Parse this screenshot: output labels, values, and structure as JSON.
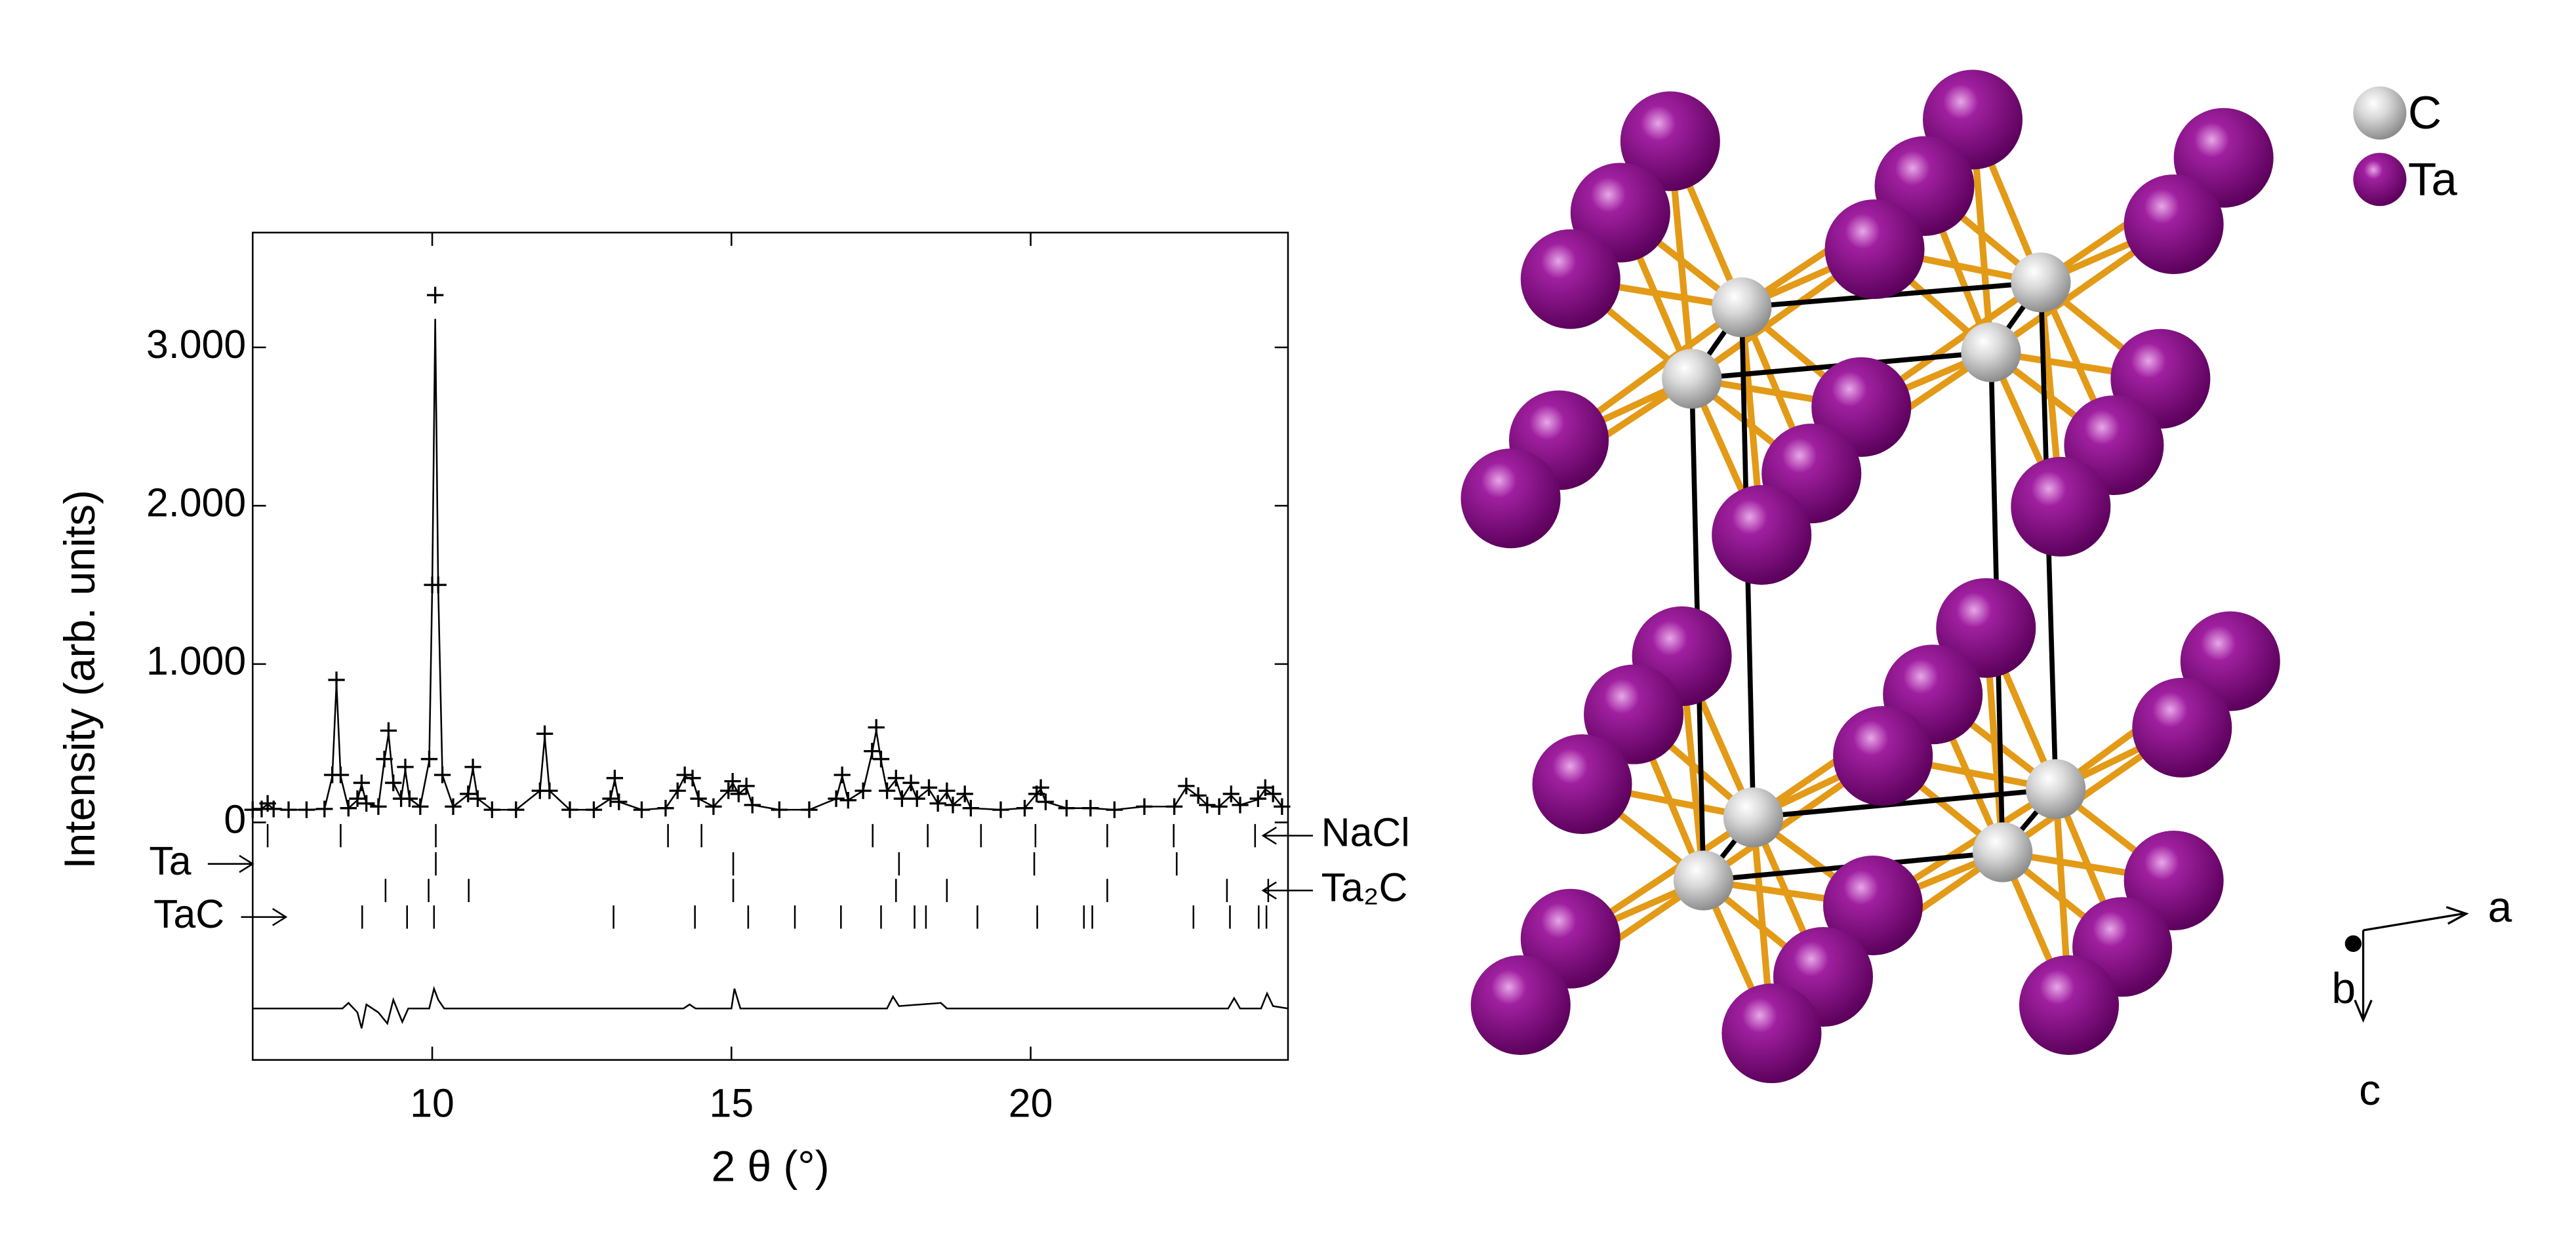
{
  "chart_data": {
    "type": "rietveld",
    "ylabel": "Intensity (arb. units)",
    "xlabel": "2 θ (°)",
    "xlim": [
      7,
      24.3
    ],
    "xticks": [
      10,
      15,
      20
    ],
    "ylim": [
      -1500,
      3725
    ],
    "yticks": [
      {
        "value": 0,
        "label": "0"
      },
      {
        "value": 1000,
        "label": "1.000"
      },
      {
        "value": 2000,
        "label": "2.000"
      },
      {
        "value": 3000,
        "label": "3.000"
      }
    ],
    "x": [
      7.0,
      7.15,
      7.25,
      7.35,
      7.6,
      7.9,
      8.2,
      8.33,
      8.4,
      8.47,
      8.6,
      8.75,
      8.82,
      8.9,
      9.1,
      9.2,
      9.27,
      9.35,
      9.48,
      9.55,
      9.62,
      9.8,
      9.95,
      10.0,
      10.05,
      10.1,
      10.17,
      10.35,
      10.6,
      10.68,
      10.76,
      11.0,
      11.4,
      11.8,
      11.88,
      11.96,
      12.3,
      12.7,
      12.98,
      13.05,
      13.12,
      13.5,
      13.9,
      14.1,
      14.22,
      14.35,
      14.45,
      14.7,
      14.95,
      15.02,
      15.12,
      15.25,
      15.35,
      15.8,
      16.3,
      16.75,
      16.85,
      16.95,
      17.2,
      17.35,
      17.42,
      17.5,
      17.6,
      17.75,
      17.85,
      18.0,
      18.1,
      18.3,
      18.45,
      18.6,
      18.7,
      18.9,
      19.0,
      19.5,
      19.9,
      20.1,
      20.17,
      20.25,
      20.6,
      21.0,
      21.4,
      21.9,
      22.4,
      22.6,
      22.8,
      22.95,
      23.15,
      23.35,
      23.5,
      23.8,
      23.92,
      24.05,
      24.2
    ],
    "observed": [
      80,
      85,
      120,
      85,
      80,
      80,
      85,
      300,
      900,
      300,
      90,
      150,
      250,
      120,
      100,
      400,
      580,
      250,
      150,
      350,
      150,
      100,
      400,
      1500,
      3330,
      1500,
      300,
      100,
      180,
      350,
      150,
      80,
      80,
      200,
      560,
      200,
      80,
      80,
      150,
      280,
      130,
      80,
      90,
      200,
      300,
      280,
      150,
      100,
      200,
      260,
      180,
      230,
      110,
      80,
      80,
      150,
      300,
      140,
      200,
      450,
      600,
      400,
      200,
      280,
      150,
      250,
      150,
      220,
      120,
      200,
      110,
      180,
      90,
      80,
      90,
      180,
      220,
      130,
      90,
      90,
      80,
      100,
      100,
      230,
      170,
      110,
      100,
      180,
      110,
      150,
      220,
      180,
      100
    ],
    "calculated": [
      80,
      85,
      115,
      85,
      80,
      80,
      85,
      290,
      880,
      290,
      90,
      140,
      240,
      120,
      100,
      390,
      560,
      250,
      150,
      330,
      150,
      100,
      390,
      1480,
      3180,
      1480,
      300,
      100,
      175,
      340,
      150,
      80,
      80,
      200,
      540,
      200,
      80,
      80,
      150,
      270,
      130,
      80,
      90,
      200,
      290,
      270,
      150,
      100,
      200,
      250,
      180,
      220,
      110,
      80,
      80,
      150,
      290,
      140,
      200,
      440,
      580,
      390,
      200,
      270,
      150,
      240,
      150,
      210,
      120,
      190,
      110,
      175,
      90,
      80,
      90,
      180,
      210,
      130,
      90,
      90,
      80,
      100,
      100,
      220,
      165,
      110,
      100,
      170,
      110,
      145,
      210,
      175,
      100
    ],
    "difference": {
      "x": [
        7.0,
        8.5,
        8.6,
        8.75,
        8.82,
        8.9,
        9.1,
        9.25,
        9.35,
        9.5,
        9.6,
        9.95,
        10.03,
        10.1,
        10.2,
        14.2,
        14.3,
        14.4,
        15.0,
        15.05,
        15.15,
        17.6,
        17.7,
        17.8,
        18.5,
        18.6,
        23.3,
        23.4,
        23.5,
        23.85,
        23.95,
        24.05,
        24.3
      ],
      "values": [
        -1175,
        -1175,
        -1140,
        -1200,
        -1300,
        -1150,
        -1200,
        -1270,
        -1120,
        -1260,
        -1175,
        -1175,
        -1050,
        -1120,
        -1175,
        -1175,
        -1150,
        -1175,
        -1175,
        -1050,
        -1175,
        -1175,
        -1100,
        -1160,
        -1140,
        -1175,
        -1175,
        -1110,
        -1175,
        -1175,
        -1080,
        -1160,
        -1175
      ]
    },
    "phases": [
      {
        "name": "NaCl",
        "reflections": [
          7.25,
          8.47,
          10.06,
          13.94,
          14.5,
          17.36,
          18.28,
          19.17,
          20.08,
          21.28,
          22.39,
          23.75
        ]
      },
      {
        "name": "Ta",
        "reflections": [
          10.06,
          15.03,
          17.8,
          20.06,
          22.44
        ]
      },
      {
        "name": "Ta₂C",
        "reflections": [
          9.22,
          9.94,
          10.61,
          15.03,
          17.75,
          18.6,
          21.28,
          23.28,
          23.97
        ]
      },
      {
        "name": "TaC",
        "reflections": [
          8.83,
          9.58,
          10.03,
          13.03,
          14.39,
          15.28,
          16.06,
          16.83,
          17.5,
          18.06,
          18.25,
          19.11,
          20.11,
          20.89,
          21.03,
          22.72,
          23.33,
          23.81,
          23.94
        ]
      }
    ]
  },
  "structure": {
    "legend": [
      "C",
      "Ta"
    ],
    "axes": [
      "a",
      "b",
      "c"
    ]
  }
}
